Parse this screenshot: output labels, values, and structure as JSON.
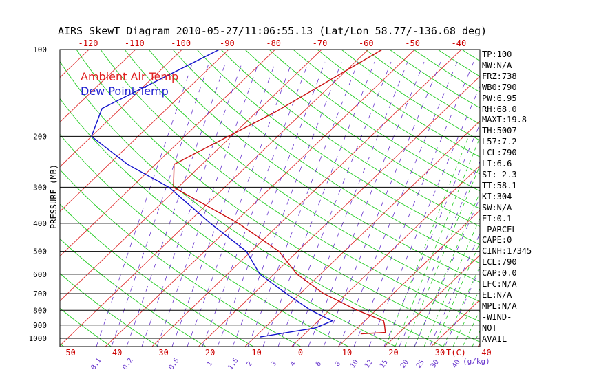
{
  "title": "AIRS SkewT Diagram 2010-05-27/11:06:55.13 (Lat/Lon 58.77/-136.68 deg)",
  "chart_data": {
    "type": "line",
    "title": "AIRS SkewT Diagram 2010-05-27/11:06:55.13 (Lat/Lon 58.77/-136.68 deg)",
    "ylabel": "PRESSURE (MB)",
    "xlabel": "T(C)",
    "mixing_ratio_label": "(g/kg)",
    "y_scale": "log",
    "y_ticks": [
      100,
      200,
      300,
      400,
      500,
      600,
      700,
      800,
      900,
      1000
    ],
    "x_ticks_top": [
      -120,
      -110,
      -100,
      -90,
      -80,
      -70,
      -60,
      -50,
      -40
    ],
    "x_ticks_bottom": [
      -50,
      -40,
      -30,
      -20,
      -10,
      0,
      10,
      20,
      30,
      40
    ],
    "mixing_ratio_ticks": [
      "0.1",
      "0.2",
      "0.5",
      "1",
      "1.5",
      "2",
      "3",
      "4",
      "6",
      "8",
      "10",
      "12",
      "15",
      "20",
      "25",
      "30",
      "40"
    ],
    "legend": [
      {
        "name": "Ambient Air Temp",
        "color": "#e02020"
      },
      {
        "name": "Dew Point Temp",
        "color": "#2020d0"
      }
    ],
    "legend_position": "top-left",
    "series": [
      {
        "name": "Ambient Air Temp",
        "color": "#cc1111",
        "points": [
          [
            100,
            -47
          ],
          [
            165,
            -56
          ],
          [
            250,
            -66
          ],
          [
            300,
            -61
          ],
          [
            400,
            -39
          ],
          [
            500,
            -24
          ],
          [
            600,
            -15
          ],
          [
            700,
            -5
          ],
          [
            800,
            6
          ],
          [
            870,
            14
          ],
          [
            895,
            15
          ],
          [
            955,
            17
          ],
          [
            965,
            12
          ]
        ]
      },
      {
        "name": "Dew Point Temp",
        "color": "#1111cc",
        "points": [
          [
            100,
            -82
          ],
          [
            160,
            -94
          ],
          [
            200,
            -90
          ],
          [
            250,
            -76
          ],
          [
            300,
            -62
          ],
          [
            400,
            -45
          ],
          [
            500,
            -31
          ],
          [
            600,
            -23
          ],
          [
            700,
            -13
          ],
          [
            800,
            -4
          ],
          [
            870,
            3
          ],
          [
            920,
            1
          ],
          [
            990,
            -9
          ]
        ]
      }
    ],
    "indices": [
      "TP:100",
      "MW:N/A",
      "FRZ:738",
      "WB0:790",
      "PW:6.95",
      "RH:68.0",
      "MAXT:19.8",
      "TH:5007",
      "L57:7.2",
      "LCL:790",
      "LI:6.6",
      "SI:-2.3",
      "TT:58.1",
      "KI:304",
      "SW:N/A",
      "EI:0.1",
      "-PARCEL-",
      "CAPE:0",
      "CINH:17345",
      "LCL:790",
      "CAP:0.0",
      "LFC:N/A",
      "EL:N/A",
      "MPL:N/A",
      "-WIND-",
      "NOT",
      "AVAIL"
    ]
  }
}
